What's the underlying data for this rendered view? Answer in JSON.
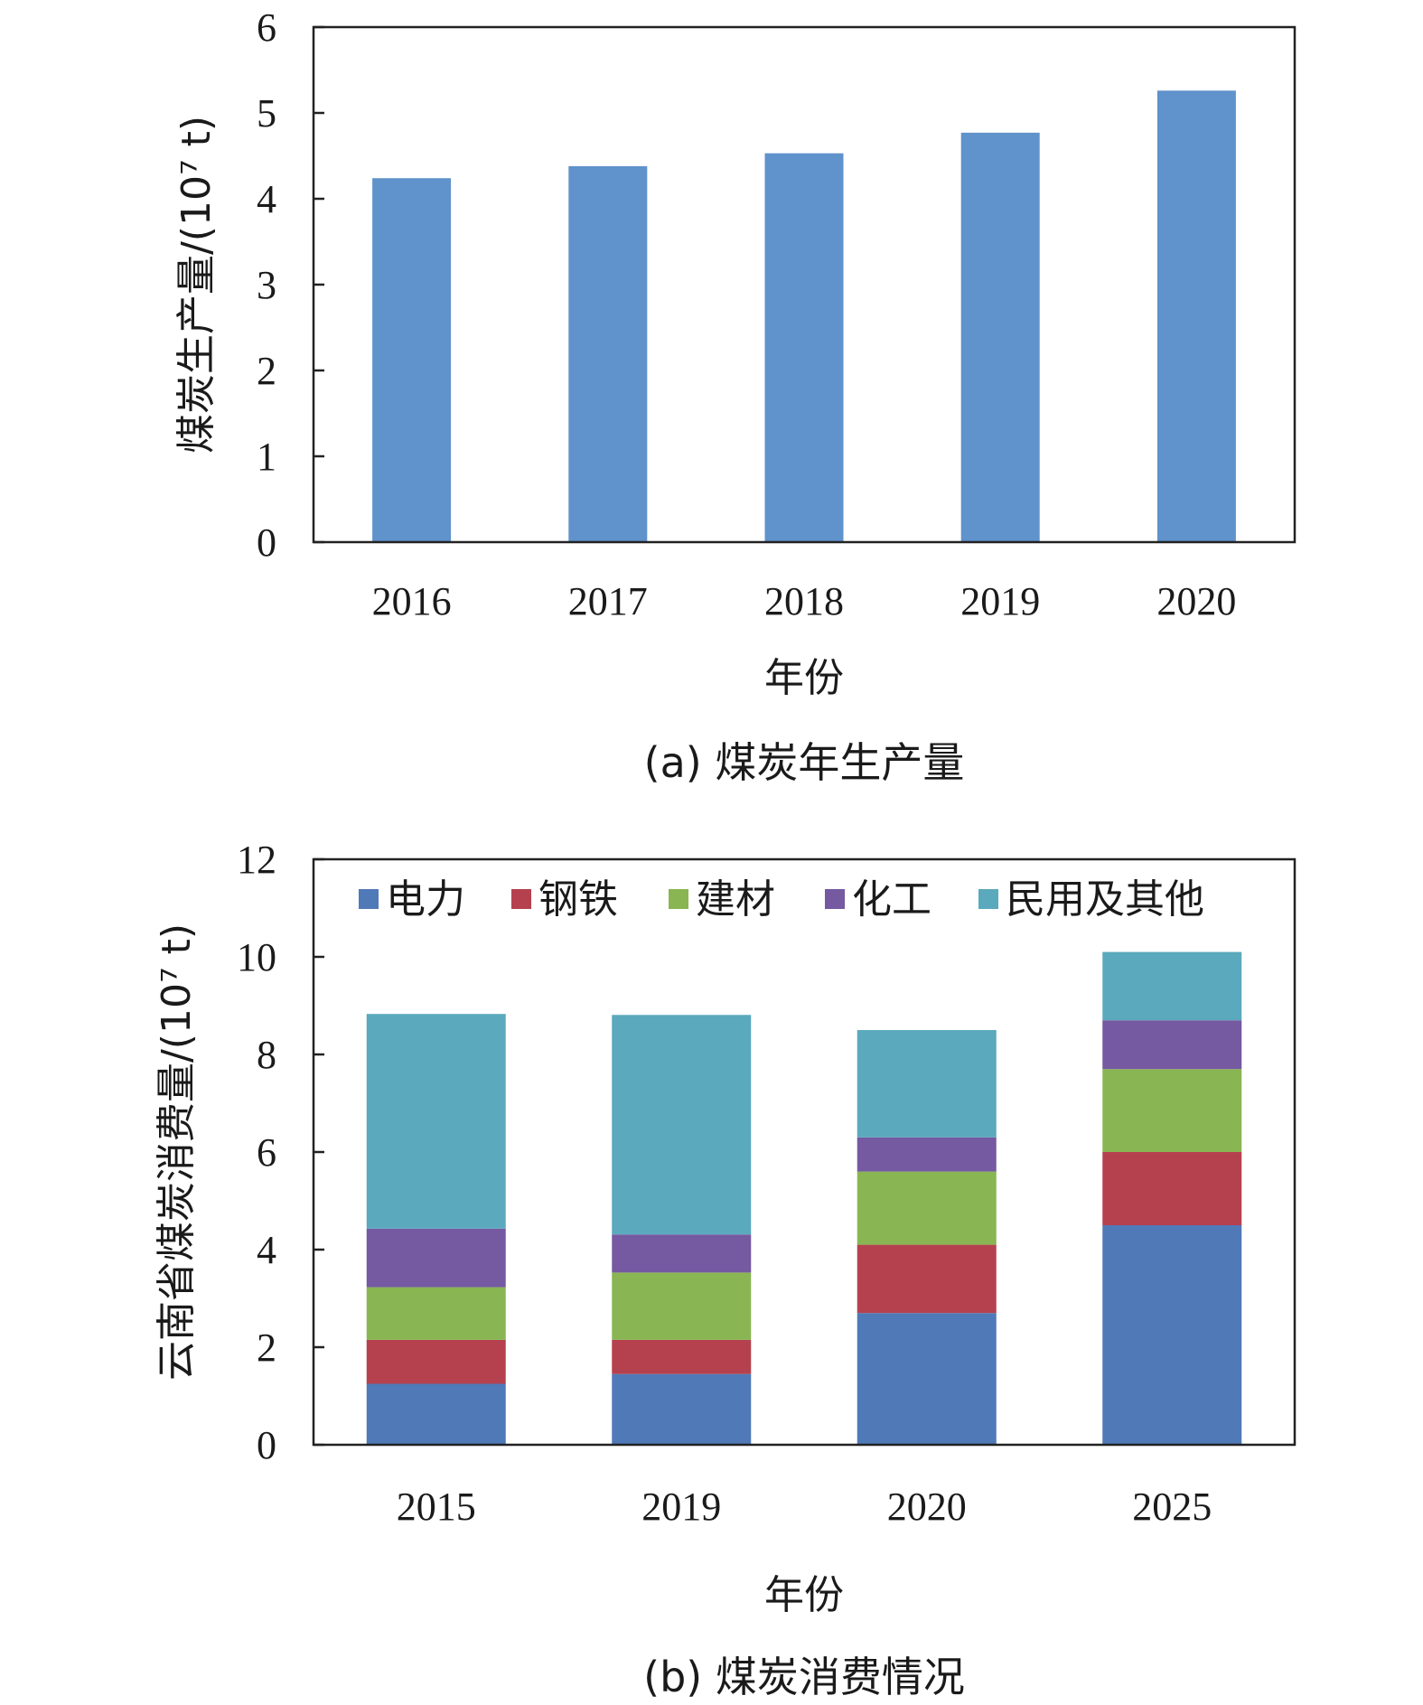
{
  "chart_data": [
    {
      "type": "bar",
      "caption": "(a) 煤炭年生产量",
      "categories": [
        "2016",
        "2017",
        "2018",
        "2019",
        "2020"
      ],
      "values": [
        4.24,
        4.38,
        4.53,
        4.77,
        5.26
      ],
      "xlabel": "年份",
      "ylabel": "煤炭生产量/(10⁷ t)",
      "ylim": [
        0,
        6
      ],
      "yticks": [
        "0",
        "1",
        "2",
        "3",
        "4",
        "5",
        "6"
      ],
      "color": "#6092cb",
      "grid": false
    },
    {
      "type": "bar",
      "stacked": true,
      "caption": "(b) 煤炭消费情况",
      "categories": [
        "2015",
        "2019",
        "2020",
        "2025"
      ],
      "series": [
        {
          "name": "电力",
          "color": "#5079b8",
          "values": [
            1.25,
            1.45,
            2.7,
            4.5
          ]
        },
        {
          "name": "钢铁",
          "color": "#b5414f",
          "values": [
            0.9,
            0.7,
            1.4,
            1.5
          ]
        },
        {
          "name": "建材",
          "color": "#89b552",
          "values": [
            1.08,
            1.38,
            1.5,
            1.7
          ]
        },
        {
          "name": "化工",
          "color": "#7559a1",
          "values": [
            1.2,
            0.78,
            0.7,
            1.0
          ]
        },
        {
          "name": "民用及其他",
          "color": "#5ba9bd",
          "values": [
            4.4,
            4.5,
            2.2,
            1.4
          ]
        }
      ],
      "xlabel": "年份",
      "ylabel": "云南省煤炭消费量/(10⁷ t)",
      "ylim": [
        0,
        12
      ],
      "yticks": [
        "0",
        "2",
        "4",
        "6",
        "8",
        "10",
        "12"
      ],
      "legend": "top",
      "grid": false
    }
  ]
}
